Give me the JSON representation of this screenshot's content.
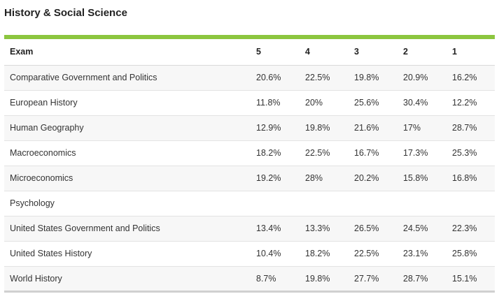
{
  "page": {
    "title": "History & Social Science"
  },
  "table": {
    "headers": [
      "Exam",
      "5",
      "4",
      "3",
      "2",
      "1"
    ],
    "rows": [
      {
        "exam": "Comparative Government and Politics",
        "s5": "20.6%",
        "s4": "22.5%",
        "s3": "19.8%",
        "s2": "20.9%",
        "s1": "16.2%"
      },
      {
        "exam": "European History",
        "s5": "11.8%",
        "s4": "20%",
        "s3": "25.6%",
        "s2": "30.4%",
        "s1": "12.2%"
      },
      {
        "exam": "Human Geography",
        "s5": "12.9%",
        "s4": "19.8%",
        "s3": "21.6%",
        "s2": "17%",
        "s1": "28.7%"
      },
      {
        "exam": "Macroeconomics",
        "s5": "18.2%",
        "s4": "22.5%",
        "s3": "16.7%",
        "s2": "17.3%",
        "s1": "25.3%"
      },
      {
        "exam": "Microeconomics",
        "s5": "19.2%",
        "s4": "28%",
        "s3": "20.2%",
        "s2": "15.8%",
        "s1": "16.8%"
      },
      {
        "exam": "Psychology",
        "s5": "",
        "s4": "",
        "s3": "",
        "s2": "",
        "s1": ""
      },
      {
        "exam": "United States Government and Politics",
        "s5": "13.4%",
        "s4": "13.3%",
        "s3": "26.5%",
        "s2": "24.5%",
        "s1": "22.3%"
      },
      {
        "exam": "United States History",
        "s5": "10.4%",
        "s4": "18.2%",
        "s3": "22.5%",
        "s2": "23.1%",
        "s1": "25.8%"
      },
      {
        "exam": "World History",
        "s5": "8.7%",
        "s4": "19.8%",
        "s3": "27.7%",
        "s2": "28.7%",
        "s1": "15.1%"
      }
    ]
  },
  "colors": {
    "accent_bar": "#8cc63f",
    "row_stripe": "#f7f7f7"
  }
}
